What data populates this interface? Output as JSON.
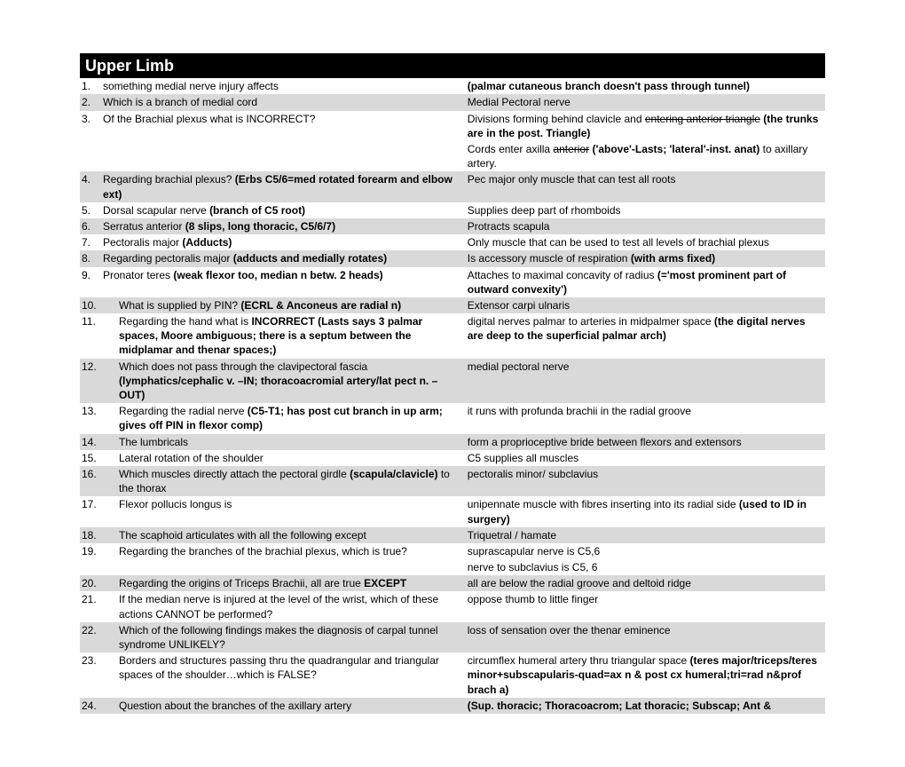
{
  "title": "Upper Limb",
  "rows": [
    {
      "shade": false,
      "num": "1.",
      "q": "something medial nerve injury affects",
      "a_html": "<b>(palmar cutaneous branch doesn't pass through tunnel)</b>"
    },
    {
      "shade": true,
      "num": "2.",
      "q": "Which is a branch of medial cord",
      "a_html": "Medial Pectoral nerve"
    },
    {
      "shade": false,
      "num": "3.",
      "q": "Of the Brachial plexus what is INCORRECT?",
      "a_html": "Divisions forming behind clavicle and <span class=\"strike\">entering anterior triangle</span> <b>(the trunks are in the post. Triangle)</b>"
    },
    {
      "shade": false,
      "num": "",
      "q": "",
      "a_html": "Cords enter axilla <span class=\"strike\">anterior</span> <b>('above'-Lasts; 'lateral'-inst. anat)</b> to axillary artery."
    },
    {
      "shade": true,
      "num": "4.",
      "q_html": "Regarding brachial plexus? <b>(Erbs C5/6=med rotated forearm and elbow ext)</b>",
      "a_html": "Pec major only muscle that can test all roots"
    },
    {
      "shade": false,
      "num": "5.",
      "q_html": "Dorsal scapular nerve <b>(branch of C5 root)</b>",
      "a_html": "Supplies deep part of rhomboids"
    },
    {
      "shade": true,
      "num": "6.",
      "q_html": "Serratus anterior <b>(8 slips, long thoracic, C5/6/7)</b>",
      "a_html": "Protracts scapula"
    },
    {
      "shade": false,
      "num": "7.",
      "q_html": "Pectoralis major <b>(Adducts)</b>",
      "a_html": "Only muscle that can be used to test all levels of brachial plexus"
    },
    {
      "shade": true,
      "num": "8.",
      "q_html": "Regarding pectoralis major <b>(adducts and medially rotates)</b>",
      "a_html": "Is accessory muscle of respiration <b>(with arms fixed)</b>"
    },
    {
      "shade": false,
      "num": "9.",
      "q_html": "Pronator teres <b>(weak flexor too, median n betw. 2 heads)</b>",
      "a_html": "Attaches to maximal concavity of radius <b>(='most prominent part of outward convexity')</b>"
    },
    {
      "shade": true,
      "num": "10.",
      "wide": true,
      "q_html": "What is supplied by PIN? <b>(ECRL & Anconeus are radial n)</b>",
      "a_html": "Extensor carpi ulnaris"
    },
    {
      "shade": false,
      "num": "11.",
      "wide": true,
      "q_html": "Regarding the hand what is <b>INCORRECT (Lasts says 3 palmar spaces, Moore ambiguous; there is a septum between the midplamar and thenar spaces;)</b>",
      "a_html": "digital nerves palmar to arteries in midpalmer space <b>(the digital nerves are deep to the superficial palmar arch)</b>"
    },
    {
      "shade": true,
      "num": "12.",
      "wide": true,
      "q_html": "Which does not pass through the clavipectoral fascia <b>(lymphatics/cephalic v. –IN; thoracoacromial artery/lat pect n. –OUT)</b>",
      "a_html": "medial pectoral nerve"
    },
    {
      "shade": false,
      "num": "13.",
      "wide": true,
      "q_html": "Regarding the radial nerve <b>(C5-T1; has post cut branch in up arm; gives off PIN in flexor comp)</b>",
      "a_html": "it runs with profunda brachii in the radial groove"
    },
    {
      "shade": true,
      "num": "14.",
      "wide": true,
      "q": "The lumbricals",
      "a_html": "form a proprioceptive bride between flexors and extensors"
    },
    {
      "shade": false,
      "num": "15.",
      "wide": true,
      "q": "Lateral rotation of the shoulder",
      "a_html": "C5 supplies all muscles"
    },
    {
      "shade": true,
      "num": "16.",
      "wide": true,
      "q_html": "Which muscles directly attach the pectoral girdle <b>(scapula/clavicle)</b> to the thorax",
      "a_html": "pectoralis minor/ subclavius"
    },
    {
      "shade": false,
      "num": "17.",
      "wide": true,
      "q": "Flexor pollucis longus is",
      "a_html": "unipennate muscle with fibres inserting into its radial side <b>(used to ID in surgery)</b>"
    },
    {
      "shade": true,
      "num": "18.",
      "wide": true,
      "q": "The scaphoid articulates with all the following except",
      "a_html": "Triquetral / hamate"
    },
    {
      "shade": false,
      "num": "19.",
      "wide": true,
      "q": "Regarding the branches of the brachial plexus, which is true?",
      "a_html": "suprascapular nerve is C5,6"
    },
    {
      "shade": false,
      "num": "",
      "wide": true,
      "q": "",
      "a_html": "nerve to subclavius is C5, 6"
    },
    {
      "shade": true,
      "num": "20.",
      "wide": true,
      "q_html": "Regarding the origins of Triceps Brachii, all are true <b>EXCEPT</b>",
      "a_html": "all are below the radial groove and deltoid ridge"
    },
    {
      "shade": false,
      "num": "21.",
      "wide": true,
      "q": "If the median nerve is injured at the level of the wrist, which of these actions CANNOT be performed?",
      "a_html": "oppose thumb to little finger"
    },
    {
      "shade": true,
      "num": "22.",
      "wide": true,
      "q": "Which of the following findings makes the diagnosis of carpal tunnel syndrome UNLIKELY?",
      "a_html": "loss of sensation over the thenar eminence"
    },
    {
      "shade": false,
      "num": "23.",
      "wide": true,
      "q": "Borders and structures passing thru the quadrangular and triangular spaces of the shoulder…which is FALSE?",
      "a_html": "circumflex humeral artery thru triangular space <b>(teres major/triceps/teres minor+subscapularis-quad=ax n & post cx humeral;tri=rad n&prof brach a)</b>"
    },
    {
      "shade": true,
      "num": "24.",
      "wide": true,
      "q": "Question about the branches of the axillary artery",
      "a_html": "<b>(Sup. thoracic; Thoracoacrom; Lat thoracic; Subscap; Ant &</b>"
    }
  ]
}
